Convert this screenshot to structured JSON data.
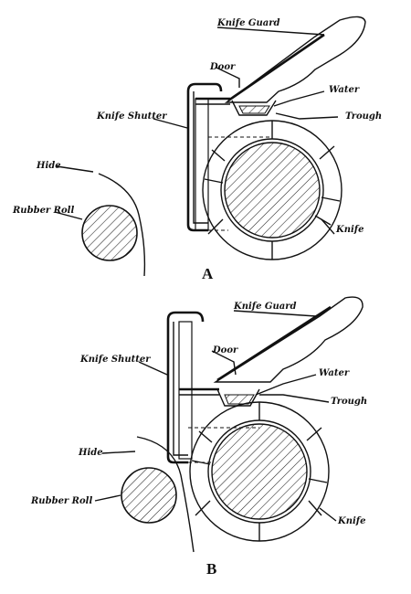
{
  "colors": {
    "ink": "#111111",
    "paper": "#ffffff"
  },
  "panels": [
    {
      "letter": "A",
      "labels": {
        "knife_guard": "Knife Guard",
        "door": "Door",
        "water": "Water",
        "knife_shutter": "Knife Shutter",
        "trough": "Trough",
        "hide": "Hide",
        "rubber_roll": "Rubber Roll",
        "knife": "Knife"
      }
    },
    {
      "letter": "B",
      "labels": {
        "knife_guard": "Knife Guard",
        "door": "Door",
        "knife_shutter": "Knife Shutter",
        "water": "Water",
        "trough": "Trough",
        "hide": "Hide",
        "rubber_roll": "Rubber Roll",
        "knife": "Knife"
      }
    }
  ]
}
